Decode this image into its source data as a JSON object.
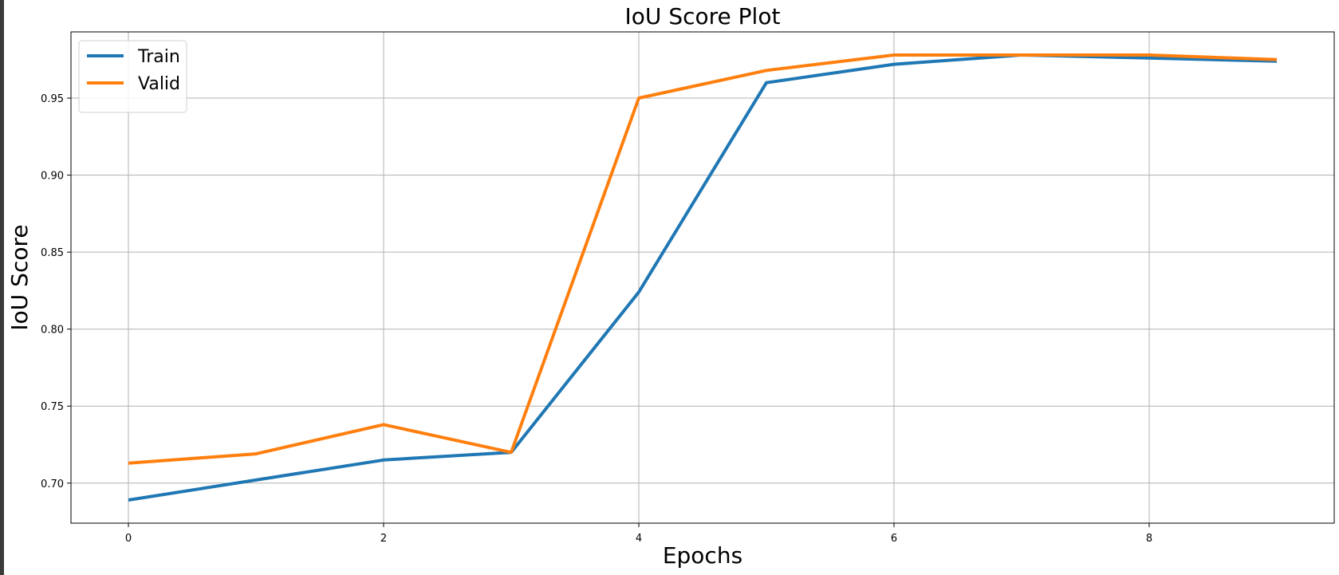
{
  "chart_data": {
    "type": "line",
    "title": "IoU Score Plot",
    "xlabel": "Epochs",
    "ylabel": "IoU Score",
    "x": [
      0,
      1,
      2,
      3,
      4,
      5,
      6,
      7,
      8,
      9
    ],
    "xlim": [
      -0.45,
      9.45
    ],
    "ylim": [
      0.674,
      0.993
    ],
    "xticks": [
      0,
      2,
      4,
      6,
      8
    ],
    "xtick_labels": [
      "0",
      "2",
      "4",
      "6",
      "8"
    ],
    "yticks": [
      0.7,
      0.75,
      0.8,
      0.85,
      0.9,
      0.95
    ],
    "ytick_labels": [
      "0.70",
      "0.75",
      "0.80",
      "0.85",
      "0.90",
      "0.95"
    ],
    "grid": true,
    "legend_position": "top-left",
    "series": [
      {
        "name": "Train",
        "color": "#1f77b4",
        "values": [
          0.689,
          0.702,
          0.715,
          0.72,
          0.824,
          0.96,
          0.972,
          0.978,
          0.976,
          0.974
        ]
      },
      {
        "name": "Valid",
        "color": "#ff7f0e",
        "values": [
          0.713,
          0.719,
          0.738,
          0.72,
          0.95,
          0.968,
          0.978,
          0.978,
          0.978,
          0.975
        ]
      }
    ]
  }
}
